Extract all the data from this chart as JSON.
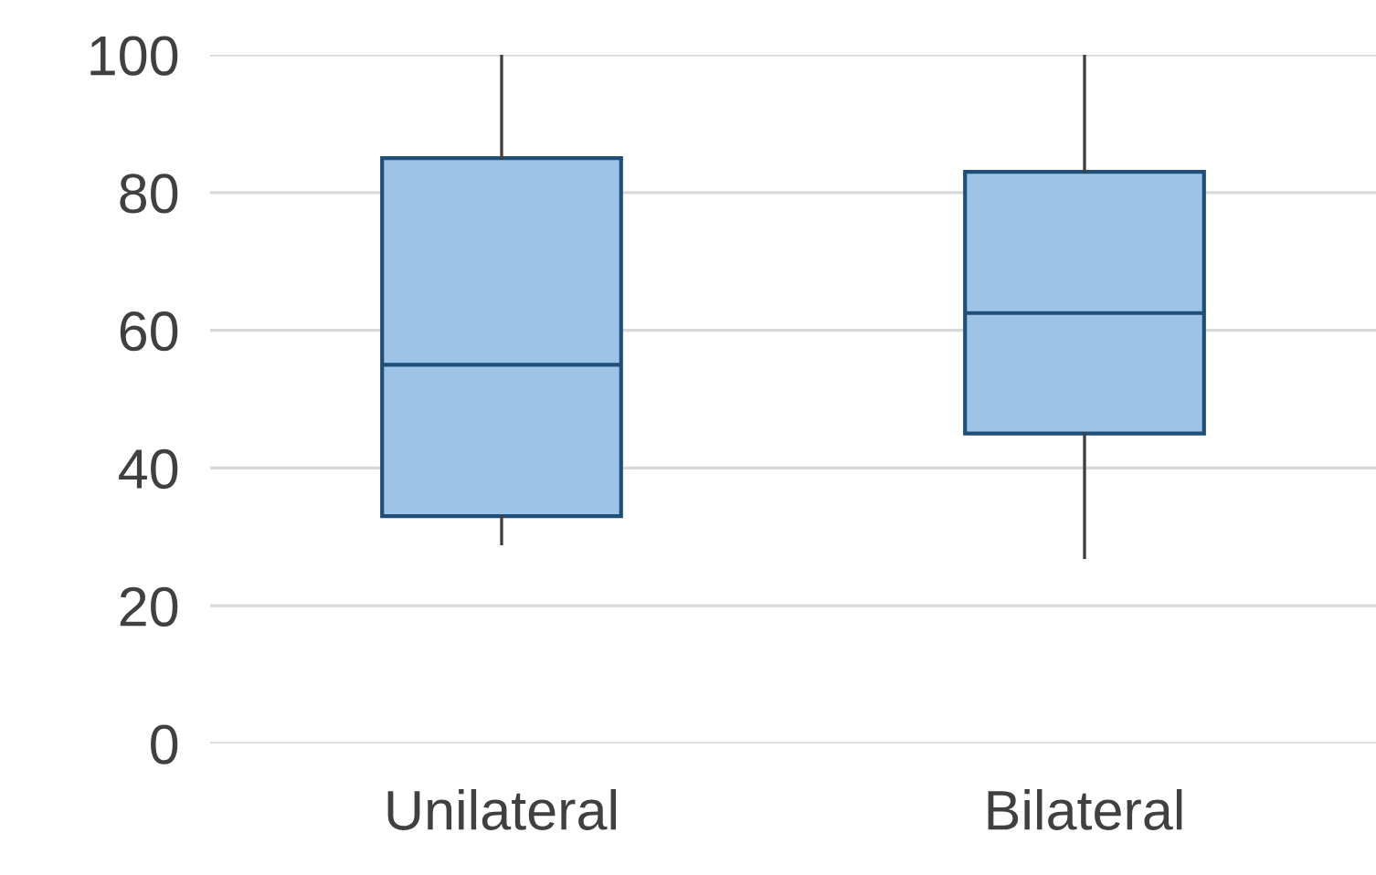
{
  "chart_data": {
    "type": "box",
    "categories": [
      "Unilateral",
      "Bilateral"
    ],
    "boxes": [
      {
        "low": 29,
        "q1": 33,
        "median": 55,
        "q3": 85,
        "high": 100
      },
      {
        "low": 27,
        "q1": 45,
        "median": 62.5,
        "q3": 83,
        "high": 100
      }
    ],
    "color": "#9dc3e6",
    "ylim": [
      0,
      100
    ],
    "yticks": [
      0,
      20,
      40,
      60,
      80,
      100
    ],
    "grid": "y"
  }
}
